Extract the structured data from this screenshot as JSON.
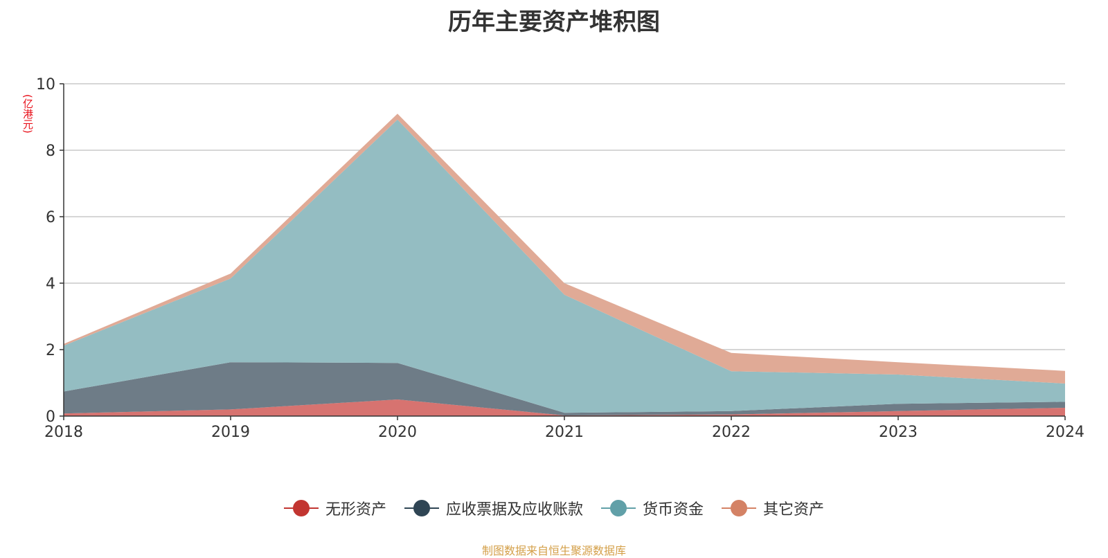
{
  "title": "历年主要资产堆积图",
  "unit": "(亿港元)",
  "source": "制图数据来自恒生聚源数据库",
  "chart_data": {
    "type": "area",
    "stacked": true,
    "title": "历年主要资产堆积图",
    "ylabel": "(亿港元)",
    "x": [
      "2018",
      "2019",
      "2020",
      "2021",
      "2022",
      "2023",
      "2024"
    ],
    "ylim": [
      0,
      10
    ],
    "yticks": [
      0,
      2,
      4,
      6,
      8,
      10
    ],
    "grid": true,
    "legend_position": "bottom",
    "series": [
      {
        "name": "无形资产",
        "color": "#c23531",
        "fill": "#d77370",
        "values": [
          0.08,
          0.2,
          0.5,
          0.02,
          0.05,
          0.15,
          0.25
        ]
      },
      {
        "name": "应收票据及应收账款",
        "color": "#2f4554",
        "fill": "#6e7c87",
        "values": [
          0.66,
          1.42,
          1.1,
          0.08,
          0.1,
          0.22,
          0.18
        ]
      },
      {
        "name": "货币资金",
        "color": "#61a0a8",
        "fill": "#94bdc2",
        "values": [
          1.38,
          2.52,
          7.32,
          3.55,
          1.2,
          0.88,
          0.55
        ]
      },
      {
        "name": "其它资产",
        "color": "#d48265",
        "fill": "#e0aa96",
        "values": [
          0.05,
          0.15,
          0.18,
          0.35,
          0.55,
          0.37,
          0.38
        ]
      }
    ]
  }
}
